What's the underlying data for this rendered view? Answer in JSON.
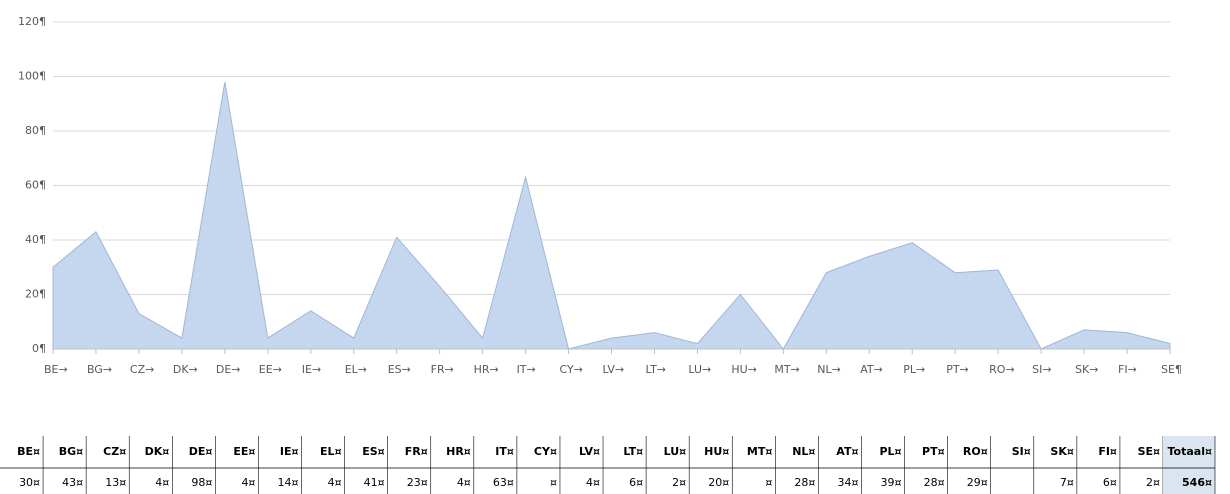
{
  "chart_data": {
    "type": "area",
    "categories": [
      "BE→",
      "BG→",
      "CZ→",
      "DK→",
      "DE→",
      "EE→",
      "IE→",
      "EL→",
      "ES→",
      "FR→",
      "HR→",
      "IT→",
      "CY→",
      "LV→",
      "LT→",
      "LU→",
      "HU→",
      "MT→",
      "NL→",
      "AT→",
      "PL→",
      "PT→",
      "RO→",
      "SI→",
      "SK→",
      "FI→",
      "SE¶"
    ],
    "values": [
      30,
      43,
      13,
      4,
      98,
      4,
      14,
      4,
      41,
      23,
      4,
      63,
      0,
      4,
      6,
      2,
      20,
      0,
      28,
      34,
      39,
      28,
      29,
      0,
      7,
      6,
      2
    ],
    "color": "#c5d7ee",
    "ylim": [
      0,
      120
    ],
    "yticks": [
      {
        "value": 0,
        "label": "0¶"
      },
      {
        "value": 20,
        "label": "20¶"
      },
      {
        "value": 40,
        "label": "40¶"
      },
      {
        "value": 60,
        "label": "60¶"
      },
      {
        "value": 80,
        "label": "80¶"
      },
      {
        "value": 100,
        "label": "100¶"
      },
      {
        "value": 120,
        "label": "120¶"
      }
    ],
    "grid": true
  },
  "table": {
    "header": [
      "BE¤",
      "BG¤",
      "CZ¤",
      "DK¤",
      "DE¤",
      "EE¤",
      "IE¤",
      "EL¤",
      "ES¤",
      "FR¤",
      "HR¤",
      "IT¤",
      "CY¤",
      "LV¤",
      "LT¤",
      "LU¤",
      "HU¤",
      "MT¤",
      "NL¤",
      "AT¤",
      "PL¤",
      "PT¤",
      "RO¤",
      "SI¤",
      "SK¤",
      "FI¤",
      "SE¤",
      "Totaal¤"
    ],
    "row": [
      "30¤",
      "43¤",
      "13¤",
      "4¤",
      "98¤",
      "4¤",
      "14¤",
      "4¤",
      "41¤",
      "23¤",
      "4¤",
      "63¤",
      "¤",
      "4¤",
      "6¤",
      "2¤",
      "20¤",
      "¤",
      "28¤",
      "34¤",
      "39¤",
      "28¤",
      "29¤",
      null,
      "7¤",
      "6¤",
      "2¤",
      "546¤"
    ]
  }
}
